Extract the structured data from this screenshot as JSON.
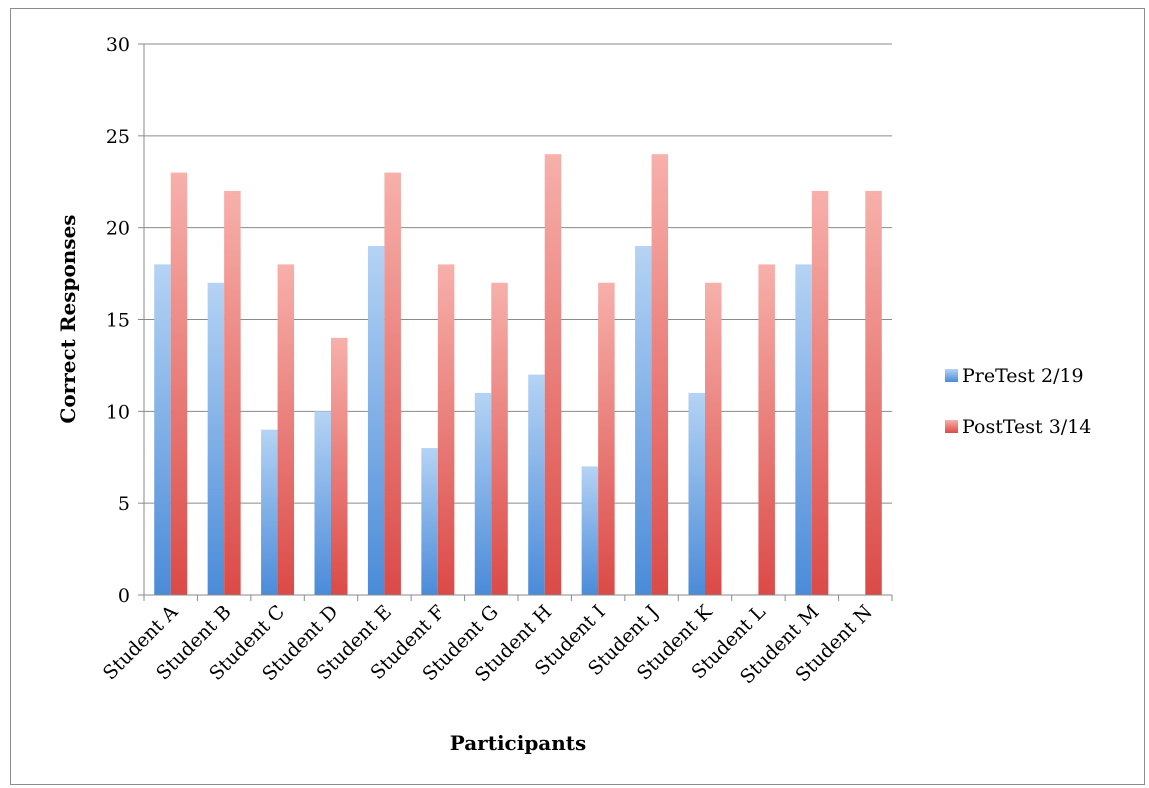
{
  "chart_data": {
    "type": "bar",
    "title": "",
    "xlabel": "Participants",
    "ylabel": "Correct Responses",
    "ylim": [
      0,
      30
    ],
    "yticks": [
      0,
      5,
      10,
      15,
      20,
      25,
      30
    ],
    "grid": true,
    "legend_position": "right",
    "categories": [
      "Student A",
      "Student B",
      "Student C",
      "Student D",
      "Student E",
      "Student F",
      "Student G",
      "Student H",
      "Student I",
      "Student J",
      "Student K",
      "Student L",
      "Student M",
      "Student N"
    ],
    "series": [
      {
        "name": "PreTest 2/19",
        "color": "#5b9bd5",
        "values": [
          18,
          17,
          9,
          10,
          19,
          8,
          11,
          12,
          7,
          19,
          11,
          0,
          18,
          0
        ]
      },
      {
        "name": "PostTest 3/14",
        "color": "#e05a5a",
        "values": [
          23,
          22,
          18,
          14,
          23,
          18,
          17,
          24,
          17,
          24,
          17,
          18,
          22,
          22
        ]
      }
    ]
  }
}
